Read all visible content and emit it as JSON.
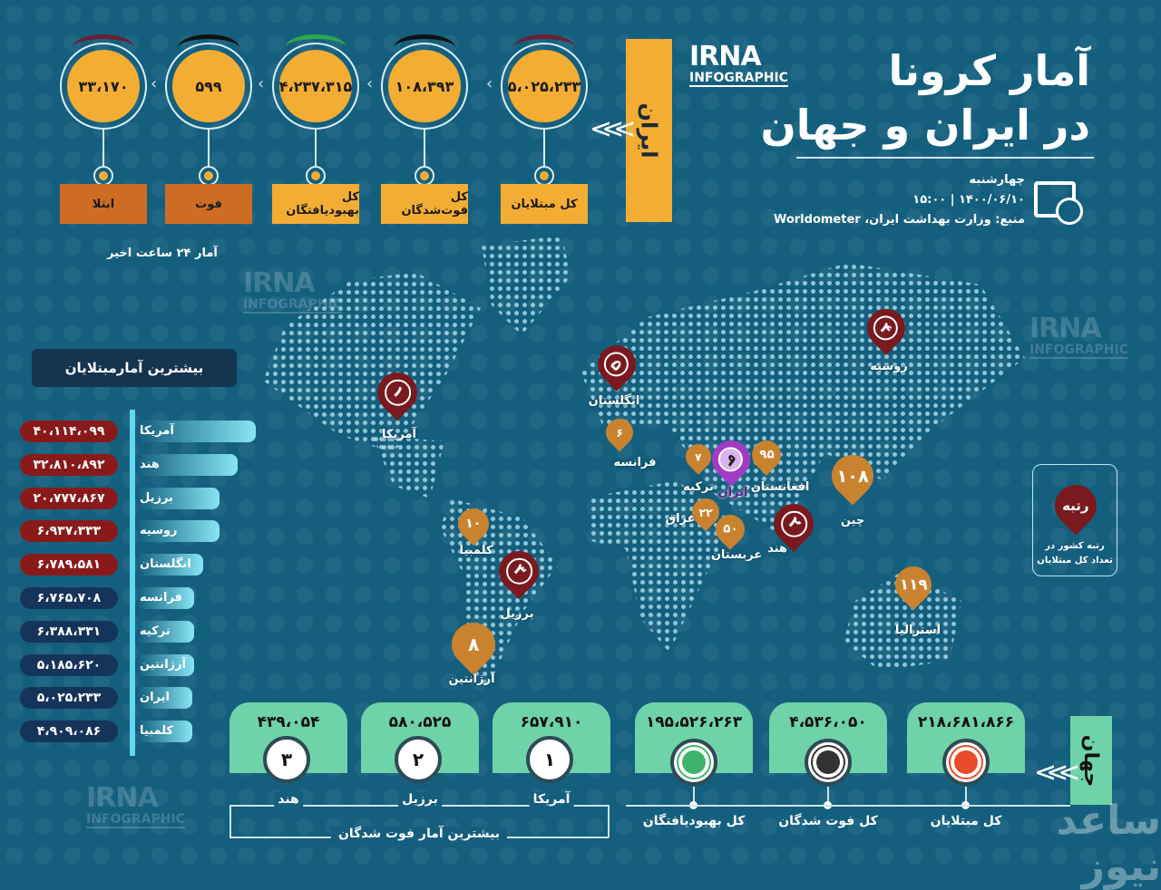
{
  "header": {
    "title_line1": "آمار کرونا",
    "title_line2": "در ایران و جهان",
    "day": "چهارشنبه",
    "datetime": "۱۴۰۰/۰۶/۱۰  |  ۱۵:۰۰",
    "source": "منبع: وزارت بهداشت ایران، Worldometer",
    "logo_top": "IRNA",
    "logo_bottom": "INFOGRAPHIC"
  },
  "iran": {
    "label": "ایران",
    "stats": [
      {
        "value": "۵،۰۲۵،۲۳۳",
        "label": "کل مبتلایان",
        "arc_color": "#6b1f35",
        "label_bg": "#f4ad33"
      },
      {
        "value": "۱۰۸،۳۹۳",
        "label": "کل فوت‌شدگان",
        "arc_color": "#111111",
        "label_bg": "#f4ad33"
      },
      {
        "value": "۴،۲۳۷،۳۱۵",
        "label": "کل بهبودیافتگان",
        "arc_color": "#2fa84a",
        "label_bg": "#f4ad33"
      },
      {
        "value": "۵۹۹",
        "label": "فوت",
        "arc_color": "#111111",
        "label_bg": "#cf6c24"
      },
      {
        "value": "۳۳،۱۷۰",
        "label": "ابتلا",
        "arc_color": "#6b1f35",
        "label_bg": "#cf6c24"
      }
    ],
    "last24": "آمار ۲۴ ساعت اخیر"
  },
  "top_infected": {
    "title": "بیشترین آمارمبتلایان",
    "rows": [
      {
        "country": "آمریکا",
        "value": "۴۰،۱۱۴،۰۹۹",
        "color": "#8a1a1a"
      },
      {
        "country": "هند",
        "value": "۳۲،۸۱۰،۸۹۲",
        "color": "#8a1a1a"
      },
      {
        "country": "برزیل",
        "value": "۲۰،۷۷۷،۸۶۷",
        "color": "#8a1a1a"
      },
      {
        "country": "روسیه",
        "value": "۶،۹۳۷،۳۳۳",
        "color": "#8a1a1a"
      },
      {
        "country": "انگلستان",
        "value": "۶،۷۸۹،۵۸۱",
        "color": "#8a1a1a"
      },
      {
        "country": "فرانسه",
        "value": "۶،۷۶۵،۷۰۸",
        "color": "#15345a"
      },
      {
        "country": "ترکیه",
        "value": "۶،۳۸۸،۳۳۱",
        "color": "#15345a"
      },
      {
        "country": "آرژانتین",
        "value": "۵،۱۸۵،۶۲۰",
        "color": "#15345a"
      },
      {
        "country": "ایران",
        "value": "۵،۰۲۵،۲۳۳",
        "color": "#15345a"
      },
      {
        "country": "کلمبیا",
        "value": "۴،۹۰۹،۰۸۶",
        "color": "#15345a"
      }
    ]
  },
  "map": {
    "pins": [
      {
        "rank": "۱",
        "country": "آمریکا",
        "color": "#7a1a1e"
      },
      {
        "rank": "۵",
        "country": "انگلستان",
        "color": "#7a1a1e"
      },
      {
        "rank": "۴",
        "country": "روسیه",
        "color": "#7a1a1e"
      },
      {
        "rank": "۲",
        "country": "هند",
        "color": "#7a1a1e"
      },
      {
        "rank": "۳",
        "country": "برزیل",
        "color": "#7a1a1e"
      },
      {
        "rank": "۶",
        "country": "فرانسه",
        "color": "#c9832e"
      },
      {
        "rank": "۱۰",
        "country": "کلمبیا",
        "color": "#c9832e"
      },
      {
        "rank": "۸",
        "country": "آرژانتین",
        "color": "#c9832e"
      },
      {
        "rank": "۷",
        "country": "ترکیه",
        "color": "#c9832e"
      },
      {
        "rank": "۹",
        "country": "ایران",
        "color": "#a23bc4"
      },
      {
        "rank": "۹۵",
        "country": "افغانستان",
        "color": "#c9832e"
      },
      {
        "rank": "۲۲",
        "country": "عراق",
        "color": "#c9832e"
      },
      {
        "rank": "۵۰",
        "country": "عربستان",
        "color": "#c9832e"
      },
      {
        "rank": "۱۰۸",
        "country": "چین",
        "color": "#c9832e"
      },
      {
        "rank": "۱۱۹",
        "country": "استرالیا",
        "color": "#c9832e"
      }
    ],
    "legend": {
      "pin_text": "رتبه",
      "text": "رتبه کشور در تعداد کل مبتلایان"
    }
  },
  "world": {
    "label": "جهان",
    "stats": [
      {
        "value": "۲۱۸،۶۸۱،۸۶۶",
        "label": "کل مبتلایان",
        "icon": "virus-red-icon"
      },
      {
        "value": "۴،۵۳۶،۰۵۰",
        "label": "کل فوت شدگان",
        "icon": "virus-black-icon"
      },
      {
        "value": "۱۹۵،۵۲۶،۲۶۳",
        "label": "کل بهبودیافتگان",
        "icon": "heart-pulse-icon"
      }
    ]
  },
  "top_deaths": {
    "title": "بیشترین آمار فوت شدگان",
    "items": [
      {
        "rank": "۱",
        "country": "آمریکا",
        "value": "۶۵۷،۹۱۰"
      },
      {
        "rank": "۲",
        "country": "برزیل",
        "value": "۵۸۰،۵۲۵"
      },
      {
        "rank": "۳",
        "country": "هند",
        "value": "۴۳۹،۰۵۴"
      }
    ]
  },
  "watermark": "ساعد نیوز"
}
